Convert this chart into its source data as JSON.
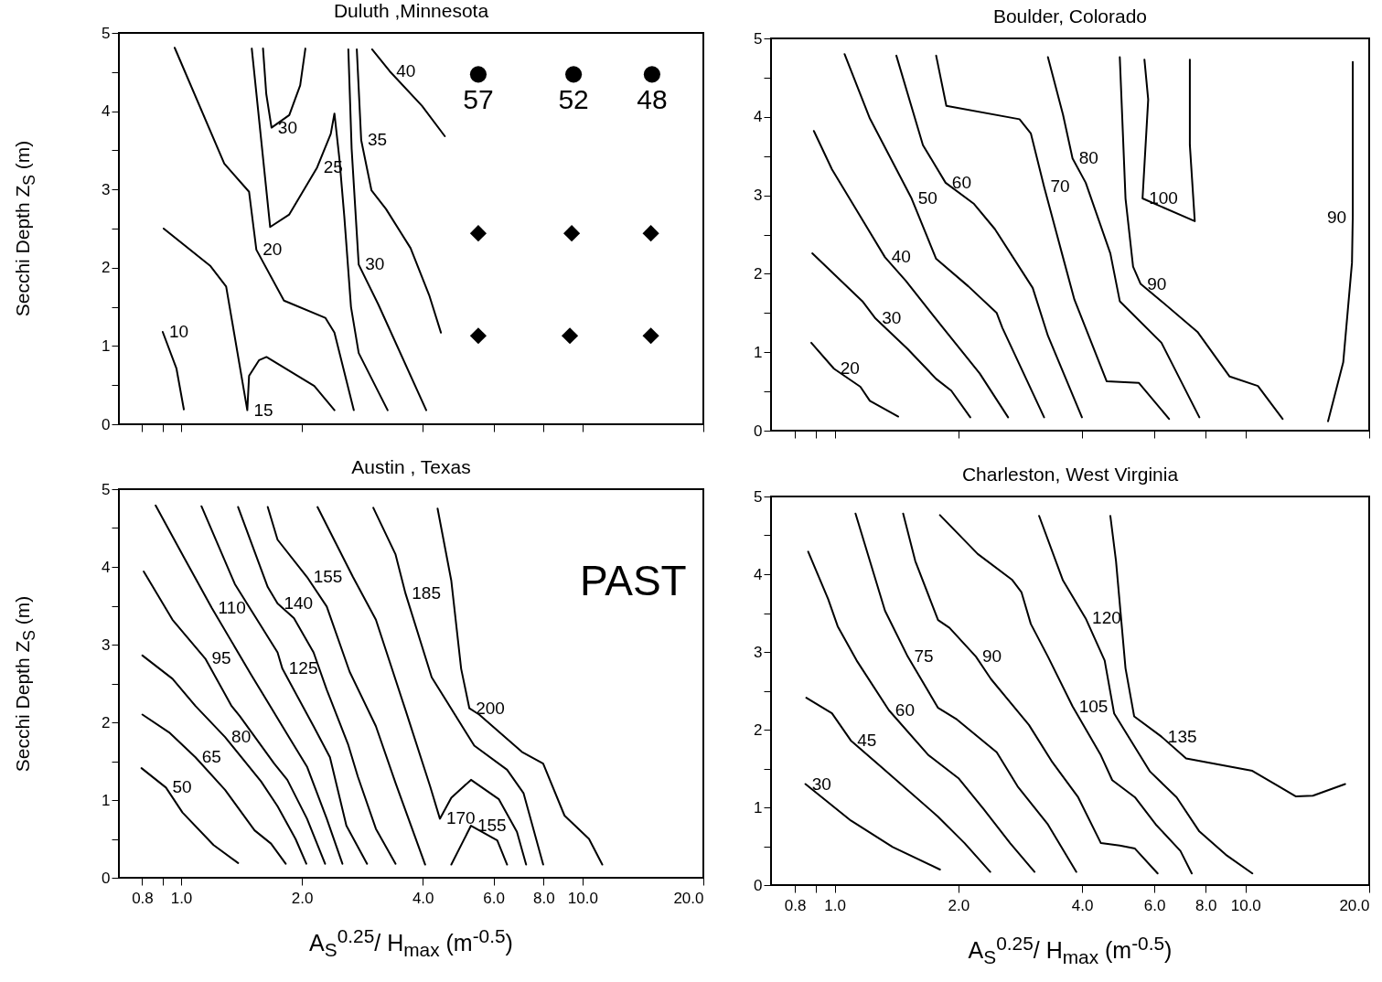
{
  "chart_data": [
    {
      "type": "line",
      "title": "Duluth ,Minnesota",
      "ylabel": "Secchi Depth Z$_{S}$ (m)",
      "log": "x",
      "xlim": [
        0.7,
        20
      ],
      "ylim": [
        0,
        5
      ],
      "xticks": [
        {
          "value": 0.8,
          "label": null
        },
        {
          "value": 0.9,
          "label": null
        },
        {
          "value": 1,
          "label": null
        },
        {
          "value": 2,
          "label": null
        },
        {
          "value": 4,
          "label": null
        },
        {
          "value": 6,
          "label": null
        },
        {
          "value": 8,
          "label": null
        },
        {
          "value": 10,
          "label": null
        },
        {
          "value": 20,
          "label": null
        }
      ],
      "yticks": [
        0,
        {
          "value": 0.5,
          "label": null
        },
        1,
        {
          "value": 1.5,
          "label": null
        },
        2,
        {
          "value": 2.5,
          "label": null
        },
        3,
        {
          "value": 3.5,
          "label": null
        },
        4,
        {
          "value": 4.5,
          "label": null
        },
        5
      ],
      "tick_labels": "y",
      "series": [
        {
          "name": "10",
          "color": "#000000",
          "x": [
            0.9,
            0.974,
            1.016
          ],
          "values": [
            1.18,
            0.71,
            0.19
          ]
        },
        {
          "name": "15",
          "color": "#000000",
          "x": [
            0.905,
            1.184,
            1.295,
            1.462,
            1.477,
            1.565,
            1.632,
            2.147,
            2.411
          ],
          "values": [
            2.5,
            2.02,
            1.76,
            0.18,
            0.62,
            0.82,
            0.86,
            0.49,
            0.18
          ]
        },
        {
          "name": "20",
          "color": "#000000",
          "x": [
            0.964,
            1.281,
            1.477,
            1.54,
            1.804,
            2.287,
            2.41,
            2.693
          ],
          "values": [
            4.81,
            3.33,
            2.97,
            2.23,
            1.58,
            1.36,
            1.17,
            0.18
          ]
        },
        {
          "name": "25",
          "color": "#000000",
          "x": [
            1.5,
            1.667,
            1.86,
            2.182,
            2.36,
            2.41,
            2.48,
            2.55,
            2.65,
            2.77,
            3.27
          ],
          "values": [
            4.8,
            2.52,
            2.68,
            3.28,
            3.71,
            3.97,
            3.39,
            2.66,
            1.5,
            0.91,
            0.18
          ]
        },
        {
          "name": "30",
          "color": "#000000",
          "x": [
            1.6,
            1.63,
            1.68,
            1.86,
            1.98,
            2.04
          ],
          "values": [
            4.8,
            4.22,
            3.79,
            3.95,
            4.33,
            4.8
          ]
        },
        {
          "name": "30",
          "color": "#000000",
          "x": [
            2.61,
            2.66,
            2.77,
            3.1,
            4.08
          ],
          "values": [
            4.79,
            3.52,
            2.04,
            1.53,
            0.18
          ]
        },
        {
          "name": "35",
          "color": "#000000",
          "x": [
            2.74,
            2.81,
            2.98,
            3.24,
            3.73,
            4.15,
            4.44
          ],
          "values": [
            4.79,
            3.63,
            2.99,
            2.75,
            2.25,
            1.65,
            1.17
          ]
        },
        {
          "name": "40",
          "color": "#000000",
          "x": [
            2.99,
            3.31,
            3.98,
            4.54
          ],
          "values": [
            4.79,
            4.51,
            4.07,
            3.68
          ]
        },
        {
          "type": "scatter",
          "marker": "circle",
          "color": "#000000",
          "x": [
            5.5,
            9.5,
            14.9
          ],
          "values": [
            4.47,
            4.47,
            4.47
          ]
        },
        {
          "type": "scatter",
          "marker": "diamond",
          "color": "#000000",
          "x": [
            5.5,
            9.4,
            14.8,
            5.5,
            9.3,
            14.8
          ],
          "values": [
            2.44,
            2.44,
            2.44,
            1.13,
            1.13,
            1.13
          ]
        }
      ],
      "annotations": [
        {
          "text": "57",
          "x": 5.5,
          "y": 4.47
        },
        {
          "text": "52",
          "x": 9.5,
          "y": 4.47
        },
        {
          "text": "48",
          "x": 14.9,
          "y": 4.47
        }
      ]
    },
    {
      "type": "line",
      "title": "Boulder, Colorado",
      "log": "x",
      "xlim": [
        0.7,
        20
      ],
      "ylim": [
        0,
        5
      ],
      "xticks": [
        {
          "value": 0.8,
          "label": null
        },
        {
          "value": 0.9,
          "label": null
        },
        {
          "value": 1,
          "label": null
        },
        {
          "value": 2,
          "label": null
        },
        {
          "value": 4,
          "label": null
        },
        {
          "value": 6,
          "label": null
        },
        {
          "value": 8,
          "label": null
        },
        {
          "value": 10,
          "label": null
        },
        {
          "value": 20,
          "label": null
        }
      ],
      "yticks": [
        0,
        {
          "value": 0.5,
          "label": null
        },
        1,
        {
          "value": 1.5,
          "label": null
        },
        2,
        {
          "value": 2.5,
          "label": null
        },
        3,
        {
          "value": 3.5,
          "label": null
        },
        4,
        {
          "value": 4.5,
          "label": null
        },
        5
      ],
      "tick_labels": "y",
      "series": [
        {
          "name": "20",
          "color": "#000000",
          "x": [
            0.877,
            0.996,
            1.155,
            1.218,
            1.428
          ],
          "values": [
            1.12,
            0.79,
            0.56,
            0.38,
            0.18
          ]
        },
        {
          "name": "30",
          "color": "#000000",
          "x": [
            0.882,
            1.168,
            1.257,
            1.506,
            1.766,
            1.922,
            2.138
          ],
          "values": [
            2.26,
            1.65,
            1.43,
            1.04,
            0.66,
            0.51,
            0.17
          ]
        },
        {
          "name": "40",
          "color": "#000000",
          "x": [
            0.89,
            0.985,
            1.107,
            1.326,
            1.49,
            1.842,
            2.254,
            2.643
          ],
          "values": [
            3.82,
            3.33,
            2.89,
            2.21,
            1.91,
            1.3,
            0.73,
            0.17
          ]
        },
        {
          "name": "50",
          "color": "#000000",
          "x": [
            1.057,
            1.218,
            1.539,
            1.766,
            2.115,
            2.48,
            2.56,
            3.234
          ],
          "values": [
            4.8,
            3.98,
            2.96,
            2.19,
            1.84,
            1.5,
            1.31,
            0.17
          ]
        },
        {
          "name": "60",
          "color": "#000000",
          "x": [
            1.413,
            1.64,
            1.862,
            2.184,
            2.454,
            3.034,
            3.304,
            3.998
          ],
          "values": [
            4.78,
            3.64,
            3.16,
            2.89,
            2.57,
            1.82,
            1.21,
            0.17
          ]
        },
        {
          "name": "70",
          "color": "#000000",
          "x": [
            1.766,
            1.87,
            2.818,
            3.002,
            3.234,
            3.595,
            3.833,
            4.591,
            5.497,
            6.514
          ],
          "values": [
            4.78,
            4.14,
            3.97,
            3.79,
            3.11,
            2.21,
            1.67,
            0.63,
            0.61,
            0.15
          ]
        },
        {
          "name": "80",
          "color": "#000000",
          "x": [
            3.304,
            3.595,
            3.793,
            4.084,
            4.688,
            4.943,
            6.243,
            7.72
          ],
          "values": [
            4.76,
            4.03,
            3.47,
            3.16,
            2.26,
            1.65,
            1.12,
            0.17
          ]
        },
        {
          "name": "90",
          "color": "#000000",
          "x": [
            4.943,
            5.104,
            5.325,
            5.556,
            6.243,
            7.638,
            9.149,
            10.72,
            12.31
          ],
          "values": [
            4.76,
            2.96,
            2.09,
            1.87,
            1.65,
            1.26,
            0.69,
            0.57,
            0.15
          ]
        },
        {
          "name": "100",
          "color": "#000000",
          "x": [
            5.675,
            5.796,
            5.615,
            7.525,
            7.32,
            7.32
          ],
          "values": [
            4.73,
            4.22,
            2.96,
            2.67,
            3.64,
            4.73
          ]
        },
        {
          "name": "90",
          "color": "#000000",
          "x": [
            18.24,
            18.24,
            18.16,
            17.29,
            15.88
          ],
          "values": [
            4.7,
            2.72,
            2.14,
            0.87,
            0.12
          ]
        }
      ]
    },
    {
      "type": "line",
      "title": "Austin , Texas",
      "ylabel": "Secchi Depth Z$_{S}$ (m)",
      "xlabel": "A$_{S}$$^{0.25}$/ H$_{max}$ (m$^{-0.5}$)",
      "log": "x",
      "xlim": [
        0.7,
        20
      ],
      "ylim": [
        0,
        5
      ],
      "xticks": [
        {
          "value": 0.8,
          "label": "0.8"
        },
        {
          "value": 0.9,
          "label": null
        },
        {
          "value": 1,
          "label": "1.0"
        },
        {
          "value": 2,
          "label": "2.0"
        },
        {
          "value": 4,
          "label": "4.0"
        },
        {
          "value": 6,
          "label": "6.0"
        },
        {
          "value": 8,
          "label": "8.0"
        },
        {
          "value": 10,
          "label": "10.0"
        },
        {
          "value": 20,
          "label": "20.0"
        }
      ],
      "yticks": [
        0,
        {
          "value": 0.5,
          "label": null
        },
        1,
        {
          "value": 1.5,
          "label": null
        },
        2,
        {
          "value": 2.5,
          "label": null
        },
        3,
        {
          "value": 3.5,
          "label": null
        },
        4,
        {
          "value": 4.5,
          "label": null
        },
        5
      ],
      "series": [
        {
          "name": "50",
          "color": "#000000",
          "x": [
            0.797,
            0.917,
            1.008,
            1.205,
            1.387
          ],
          "values": [
            1.41,
            1.16,
            0.84,
            0.42,
            0.19
          ]
        },
        {
          "name": "65",
          "color": "#000000",
          "x": [
            0.801,
            0.934,
            1.086,
            1.287,
            1.524,
            1.675,
            1.822
          ],
          "values": [
            2.1,
            1.87,
            1.55,
            1.13,
            0.61,
            0.44,
            0.18
          ]
        },
        {
          "name": "80",
          "color": "#000000",
          "x": [
            0.801,
            0.952,
            1.086,
            1.287,
            1.582,
            1.739,
            1.928,
            2.051
          ],
          "values": [
            2.86,
            2.56,
            2.21,
            1.81,
            1.24,
            0.92,
            0.5,
            0.18
          ]
        },
        {
          "name": "95",
          "color": "#000000",
          "x": [
            0.807,
            0.952,
            1.149,
            1.336,
            1.4,
            1.706,
            1.839,
            2.059,
            2.284
          ],
          "values": [
            3.94,
            3.32,
            2.82,
            2.21,
            2.08,
            1.47,
            1.26,
            0.76,
            0.18
          ]
        },
        {
          "name": "110",
          "color": "#000000",
          "x": [
            0.864,
            1.017,
            1.193,
            1.496,
            1.857,
            2.059,
            2.306,
            2.523
          ],
          "values": [
            4.79,
            4.12,
            3.47,
            2.61,
            1.81,
            1.43,
            0.76,
            0.18
          ]
        },
        {
          "name": "125",
          "color": "#000000",
          "x": [
            1.124,
            1.361,
            1.739,
            1.788,
            2.138,
            2.349,
            2.581,
            2.906
          ],
          "values": [
            4.78,
            3.78,
            2.9,
            2.69,
            1.95,
            1.55,
            0.67,
            0.18
          ]
        },
        {
          "name": "140",
          "color": "#000000",
          "x": [
            1.387,
            1.644,
            1.739,
            1.91,
            2.138,
            2.306,
            2.605,
            2.757,
            3.057,
            3.422
          ],
          "values": [
            4.77,
            3.74,
            3.53,
            3.34,
            2.9,
            2.42,
            1.72,
            1.3,
            0.63,
            0.18
          ]
        },
        {
          "name": "155",
          "color": "#000000",
          "x": [
            1.644,
            1.739,
            2.059,
            2.306,
            2.63,
            3.057,
            3.422,
            4.055
          ],
          "values": [
            4.77,
            4.35,
            3.87,
            3.49,
            2.65,
            1.95,
            1.22,
            0.17
          ]
        },
        {
          "name": "170",
          "color": "#000000",
          "x": [
            2.187,
            2.68,
            3.057,
            3.622,
            4.171,
            4.413,
            4.712,
            5.275,
            6.191,
            6.865,
            7.236
          ],
          "values": [
            4.77,
            3.87,
            3.32,
            2.16,
            1.18,
            0.76,
            1.03,
            1.26,
            1.01,
            0.59,
            0.17
          ]
        },
        {
          "name": "185",
          "color": "#000000",
          "x": [
            3.012,
            3.422,
            3.622,
            4.21,
            5.375,
            6.488,
            7.128,
            7.98
          ],
          "values": [
            4.76,
            4.16,
            3.66,
            2.58,
            1.7,
            1.39,
            1.09,
            0.17
          ]
        },
        {
          "name": "200",
          "color": "#000000",
          "x": [
            4.355,
            4.712,
            4.985,
            5.226,
            5.528,
            7.063,
            7.98,
            9.02,
            10.38,
            11.2
          ],
          "values": [
            4.75,
            3.82,
            2.69,
            2.18,
            2.1,
            1.62,
            1.47,
            0.8,
            0.5,
            0.17
          ]
        },
        {
          "name": "155",
          "color": "#000000",
          "x": [
            4.712,
            5.275,
            6.133,
            6.488
          ],
          "values": [
            0.17,
            0.67,
            0.48,
            0.17
          ]
        }
      ],
      "annotations": [
        "PAST"
      ]
    },
    {
      "type": "line",
      "title": "Charleston, West Virginia",
      "xlabel": "A$_{S}$$^{0.25}$/ H$_{max}$ (m$^{-0.5}$)",
      "log": "x",
      "xlim": [
        0.7,
        20
      ],
      "ylim": [
        0,
        5
      ],
      "xticks": [
        {
          "value": 0.8,
          "label": "0.8"
        },
        {
          "value": 0.9,
          "label": null
        },
        {
          "value": 1,
          "label": "1.0"
        },
        {
          "value": 2,
          "label": "2.0"
        },
        {
          "value": 4,
          "label": "4.0"
        },
        {
          "value": 6,
          "label": "6.0"
        },
        {
          "value": 8,
          "label": "8.0"
        },
        {
          "value": 10,
          "label": "10.0"
        },
        {
          "value": 20,
          "label": "20.0"
        }
      ],
      "yticks": [
        0,
        {
          "value": 0.5,
          "label": null
        },
        1,
        {
          "value": 1.5,
          "label": null
        },
        2,
        {
          "value": 2.5,
          "label": null
        },
        3,
        {
          "value": 3.5,
          "label": null
        },
        4,
        {
          "value": 4.5,
          "label": null
        },
        5
      ],
      "series": [
        {
          "name": "30",
          "color": "#000000",
          "x": [
            0.849,
            1.095,
            1.384,
            1.804
          ],
          "values": [
            1.3,
            0.83,
            0.49,
            0.2
          ]
        },
        {
          "name": "45",
          "color": "#000000",
          "x": [
            0.853,
            0.985,
            1.095,
            1.298,
            1.785,
            2.071,
            2.392
          ],
          "values": [
            2.41,
            2.21,
            1.86,
            1.52,
            0.88,
            0.54,
            0.17
          ]
        },
        {
          "name": "60",
          "color": "#000000",
          "x": [
            0.862,
            0.964,
            1.017,
            1.131,
            1.355,
            1.693,
            2.006,
            2.302,
            2.673,
            3.066
          ],
          "values": [
            4.29,
            3.68,
            3.33,
            2.89,
            2.25,
            1.67,
            1.37,
            0.98,
            0.54,
            0.17
          ]
        },
        {
          "name": "75",
          "color": "#000000",
          "x": [
            1.124,
            1.326,
            1.506,
            1.785,
            1.985,
            2.48,
            2.788,
            3.304,
            3.873
          ],
          "values": [
            4.78,
            3.53,
            2.94,
            2.28,
            2.13,
            1.71,
            1.27,
            0.78,
            0.17
          ]
        },
        {
          "name": "90",
          "color": "#000000",
          "x": [
            1.468,
            1.571,
            1.785,
            1.903,
            2.207,
            2.402,
            2.971,
            3.388,
            3.914,
            4.446,
            4.943,
            5.381,
            6.111
          ],
          "values": [
            4.78,
            4.17,
            3.41,
            3.31,
            2.94,
            2.65,
            2.06,
            1.58,
            1.13,
            0.54,
            0.51,
            0.47,
            0.15
          ]
        },
        {
          "name": "105",
          "color": "#000000",
          "x": [
            1.804,
            2.23,
            2.701,
            2.848,
            3.002,
            3.304,
            3.793,
            4.446,
            4.738,
            5.381,
            6.047,
            6.943,
            7.399
          ],
          "values": [
            4.76,
            4.26,
            3.93,
            3.77,
            3.36,
            2.94,
            2.3,
            1.67,
            1.35,
            1.13,
            0.78,
            0.44,
            0.15
          ]
        },
        {
          "name": "120",
          "color": "#000000",
          "x": [
            3.145,
            3.595,
            4.084,
            4.541,
            4.788,
            5.857,
            6.797,
            7.72,
            8.957,
            10.39
          ],
          "values": [
            4.75,
            3.92,
            3.43,
            2.89,
            2.21,
            1.46,
            1.13,
            0.69,
            0.39,
            0.15
          ]
        },
        {
          "name": "135",
          "color": "#000000",
          "x": [
            4.688,
            4.839,
            5.104,
            5.358,
            6.243,
            7.168,
            10.39,
            12.06,
            13.27,
            14.59,
            17.48
          ],
          "values": [
            4.75,
            4.17,
            2.79,
            2.17,
            1.91,
            1.63,
            1.47,
            1.27,
            1.14,
            1.15,
            1.3
          ]
        }
      ]
    }
  ]
}
